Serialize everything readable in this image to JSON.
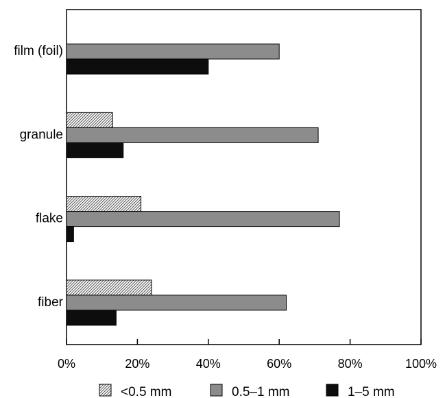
{
  "chart_data": {
    "type": "bar",
    "orientation": "horizontal",
    "categories": [
      "film (foil)",
      "granule",
      "flake",
      "fiber"
    ],
    "series": [
      {
        "name": "<0.5 mm",
        "values": [
          0,
          13,
          21,
          24
        ],
        "color": "#ffffff",
        "pattern": "diagonal-hatch"
      },
      {
        "name": "0.5–1 mm",
        "values": [
          60,
          71,
          77,
          62
        ],
        "color": "#8c8c8c"
      },
      {
        "name": "1–5 mm",
        "values": [
          40,
          16,
          2,
          14
        ],
        "color": "#0d0d0d"
      }
    ],
    "xlim": [
      0,
      100
    ],
    "x_ticks": [
      "0%",
      "20%",
      "40%",
      "60%",
      "80%",
      "100%"
    ],
    "x_tick_values": [
      0,
      20,
      40,
      60,
      80,
      100
    ],
    "legend_position": "bottom",
    "grid": false
  }
}
